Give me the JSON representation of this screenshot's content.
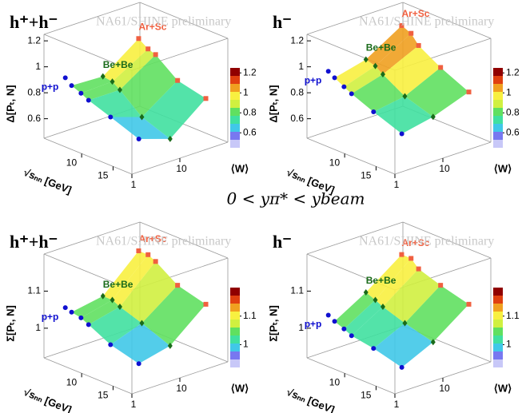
{
  "annotation": "0 < yπ* < ybeam",
  "chart_data": [
    {
      "type": "surface3d",
      "title": "h⁺+h⁻",
      "watermark": "NA61/SHINE preliminary",
      "zlabel": "Δ[Pₜ, N]",
      "xlabel": "√sₙₙ [GeV]",
      "wlabel": "⟨W⟩",
      "x": [
        5.1,
        6.1,
        7.6,
        8.8,
        12.3,
        16.8
      ],
      "xlim": [
        4,
        18
      ],
      "xticks": [
        10,
        15
      ],
      "wlim": [
        1,
        100
      ],
      "wticks": [
        1,
        10
      ],
      "log_w": true,
      "zlim": [
        0.45,
        1.25
      ],
      "zticks": [
        0.6,
        0.8,
        1,
        1.2
      ],
      "palette": [
        "#c8c8f8",
        "#7878f0",
        "#40c8e8",
        "#40e0a0",
        "#60e060",
        "#d0f040",
        "#f8f040",
        "#f0a020",
        "#e04010",
        "#900000"
      ],
      "series": [
        {
          "name": "p+p",
          "color": "#1010d0",
          "w": 2,
          "values": [
            0.9,
            0.86,
            0.83,
            0.8,
            0.74,
            0.66
          ]
        },
        {
          "name": "Be+Be",
          "color": "#1a6b1a",
          "w": 9,
          "values": [
            null,
            0.85,
            0.84,
            0.8,
            0.66,
            0.58
          ]
        },
        {
          "name": "Ar+Sc",
          "color": "#f06040",
          "w": 50,
          "values": [
            null,
            1.05,
            1.0,
            0.98,
            0.85,
            0.8
          ]
        }
      ]
    },
    {
      "type": "surface3d",
      "title": "h⁻",
      "watermark": "NA61/SHINE preliminary",
      "zlabel": "Δ[Pₜ, N]",
      "xlabel": "√sₙₙ [GeV]",
      "wlabel": "⟨W⟩",
      "x": [
        5.1,
        6.1,
        7.6,
        8.8,
        12.3,
        16.8
      ],
      "xlim": [
        4,
        18
      ],
      "xticks": [
        10,
        15
      ],
      "wlim": [
        1,
        100
      ],
      "wticks": [
        1,
        10
      ],
      "log_w": true,
      "zlim": [
        0.45,
        1.25
      ],
      "zticks": [
        0.6,
        0.8,
        1,
        1.2
      ],
      "palette": [
        "#c8c8f8",
        "#7878f0",
        "#40c8e8",
        "#40e0a0",
        "#60e060",
        "#d0f040",
        "#f8f040",
        "#f0a020",
        "#e04010",
        "#900000"
      ],
      "series": [
        {
          "name": "p+p",
          "color": "#1010d0",
          "w": 2,
          "values": [
            0.95,
            0.92,
            0.88,
            0.85,
            0.78,
            0.7
          ]
        },
        {
          "name": "Be+Be",
          "color": "#1a6b1a",
          "w": 9,
          "values": [
            null,
            0.98,
            0.96,
            0.92,
            0.82,
            0.75
          ]
        },
        {
          "name": "Ar+Sc",
          "color": "#f06040",
          "w": 50,
          "values": [
            null,
            1.15,
            1.12,
            1.05,
            0.95,
            0.85
          ]
        }
      ]
    },
    {
      "type": "surface3d",
      "title": "h⁺+h⁻",
      "watermark": "NA61/SHINE preliminary",
      "zlabel": "Σ[Pₜ, N]",
      "xlabel": "√sₙₙ [GeV]",
      "wlabel": "⟨W⟩",
      "x": [
        5.1,
        6.1,
        7.6,
        8.8,
        12.3,
        16.8
      ],
      "xlim": [
        4,
        18
      ],
      "xticks": [
        10,
        15
      ],
      "wlim": [
        1,
        100
      ],
      "wticks": [
        1,
        10
      ],
      "log_w": true,
      "zlim": [
        0.92,
        1.2
      ],
      "zticks": [
        1,
        1.1
      ],
      "palette": [
        "#c8c8f8",
        "#7878f0",
        "#40c8e8",
        "#40e0a0",
        "#60e060",
        "#d0f040",
        "#f8f040",
        "#f0a020",
        "#e04010",
        "#900000"
      ],
      "series": [
        {
          "name": "p+p",
          "color": "#1010d0",
          "w": 2,
          "values": [
            1.05,
            1.045,
            1.04,
            1.03,
            1.0,
            0.98
          ]
        },
        {
          "name": "Be+Be",
          "color": "#1a6b1a",
          "w": 9,
          "values": [
            null,
            1.06,
            1.06,
            1.05,
            1.03,
            1.0
          ]
        },
        {
          "name": "Ar+Sc",
          "color": "#f06040",
          "w": 50,
          "values": [
            null,
            1.15,
            1.15,
            1.14,
            1.1,
            1.08
          ]
        }
      ]
    },
    {
      "type": "surface3d",
      "title": "h⁻",
      "watermark": "NA61/SHINE preliminary",
      "zlabel": "Σ[Pₜ, N]",
      "xlabel": "√sₙₙ [GeV]",
      "wlabel": "⟨W⟩",
      "x": [
        5.1,
        6.1,
        7.6,
        8.8,
        12.3,
        16.8
      ],
      "xlim": [
        4,
        18
      ],
      "xticks": [
        10,
        15
      ],
      "wlim": [
        1,
        100
      ],
      "wticks": [
        1,
        10
      ],
      "log_w": true,
      "zlim": [
        0.92,
        1.2
      ],
      "zticks": [
        1,
        1.1
      ],
      "palette": [
        "#c8c8f8",
        "#7878f0",
        "#40c8e8",
        "#40e0a0",
        "#60e060",
        "#d0f040",
        "#f8f040",
        "#f0a020",
        "#e04010",
        "#900000"
      ],
      "series": [
        {
          "name": "p+p",
          "color": "#1010d0",
          "w": 2,
          "values": [
            1.03,
            1.02,
            1.01,
            1.0,
            0.99,
            0.97
          ]
        },
        {
          "name": "Be+Be",
          "color": "#1a6b1a",
          "w": 9,
          "values": [
            null,
            1.07,
            1.06,
            1.05,
            1.03,
            1.01
          ]
        },
        {
          "name": "Ar+Sc",
          "color": "#f06040",
          "w": 50,
          "values": [
            null,
            1.14,
            1.14,
            1.12,
            1.1,
            1.08
          ]
        }
      ]
    }
  ]
}
